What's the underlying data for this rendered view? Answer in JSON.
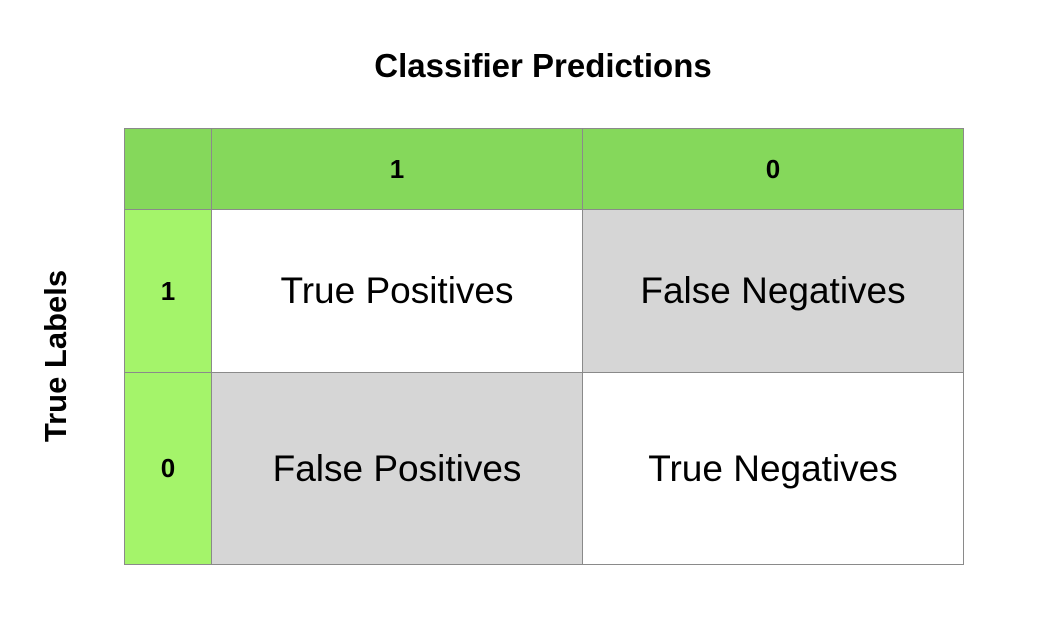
{
  "title": "Classifier Predictions",
  "side_label": "True Labels",
  "matrix": {
    "column_headers": [
      "1",
      "0"
    ],
    "row_headers": [
      "1",
      "0"
    ],
    "cells": [
      [
        "True Positives",
        "False Negatives"
      ],
      [
        "False Positives",
        "True Negatives"
      ]
    ]
  },
  "colors": {
    "header_green": "#85d85b",
    "row_header_green": "#a4f46a",
    "shaded_cell": "#d6d6d6",
    "plain_cell": "#ffffff",
    "border": "#8a8a8a"
  }
}
